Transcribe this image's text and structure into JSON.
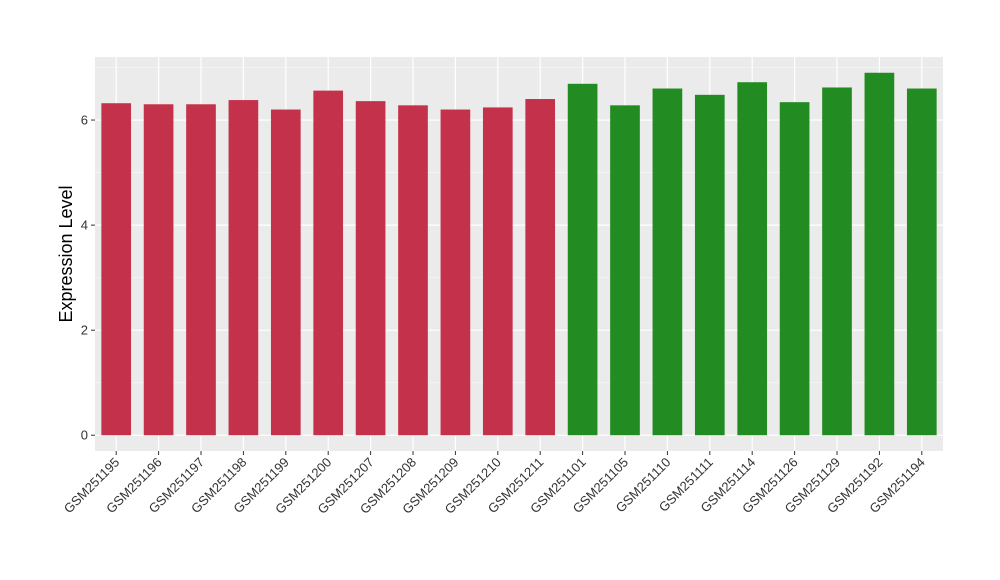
{
  "chart_data": {
    "type": "bar",
    "title": "",
    "xlabel": "",
    "ylabel": "Expression Level",
    "ylim": [
      -0.3,
      7.2
    ],
    "yticks": [
      0,
      2,
      4,
      6
    ],
    "yticks_labels": [
      "0",
      "2",
      "4",
      "6"
    ],
    "grid": true,
    "categories": [
      "GSM251195",
      "GSM251196",
      "GSM251197",
      "GSM251198",
      "GSM251199",
      "GSM251200",
      "GSM251207",
      "GSM251208",
      "GSM251209",
      "GSM251210",
      "GSM251211",
      "GSM251101",
      "GSM251105",
      "GSM251110",
      "GSM251111",
      "GSM251114",
      "GSM251126",
      "GSM251129",
      "GSM251192",
      "GSM251194"
    ],
    "values": [
      6.32,
      6.3,
      6.3,
      6.38,
      6.2,
      6.56,
      6.36,
      6.28,
      6.2,
      6.24,
      6.4,
      6.69,
      6.28,
      6.6,
      6.48,
      6.72,
      6.34,
      6.62,
      6.9,
      6.6
    ],
    "groups": [
      {
        "color": "#c3314b",
        "count": 11
      },
      {
        "color": "#228b22",
        "count": 9
      }
    ],
    "colors": {
      "panel_bg": "#ebebeb",
      "grid_major": "#ffffff",
      "grid_minor": "#f5f5f5",
      "tick": "#333333"
    }
  }
}
